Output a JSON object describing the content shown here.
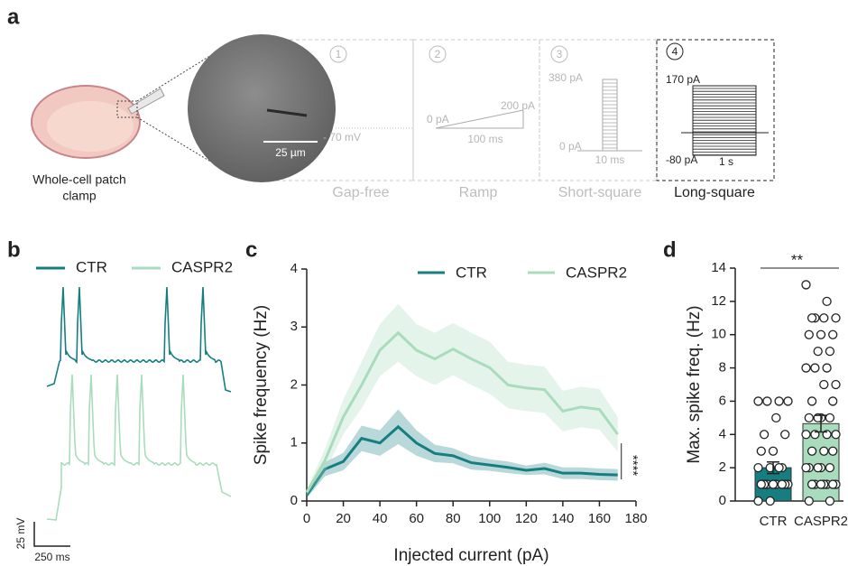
{
  "panel_a": {
    "label": "a",
    "cell_caption": [
      "Whole-cell patch",
      "clamp"
    ],
    "scale_bar": "25 µm",
    "protocols": [
      {
        "number": 1,
        "name": "Gap-free",
        "labels": [
          "- 70 mV"
        ]
      },
      {
        "number": 2,
        "name": "Ramp",
        "labels": [
          "0 pA",
          "200 pA",
          "100 ms"
        ]
      },
      {
        "number": 3,
        "name": "Short-square",
        "labels": [
          "380 pA",
          "0 pA",
          "10 ms"
        ]
      },
      {
        "number": 4,
        "name": "Long-square",
        "labels": [
          "170 pA",
          "-80 pA",
          "1 s"
        ]
      }
    ]
  },
  "panel_b": {
    "label": "b",
    "legend": [
      "CTR",
      "CASPR2"
    ],
    "scale_v": "25 mV",
    "scale_t": "250 ms"
  },
  "chart_data": [
    {
      "panel_label": "c",
      "type": "line",
      "xlabel": "Injected current (pA)",
      "ylabel": "Spike frequency (Hz)",
      "x": [
        0,
        10,
        20,
        30,
        40,
        50,
        60,
        70,
        80,
        90,
        100,
        110,
        120,
        130,
        140,
        150,
        160,
        170
      ],
      "series": [
        {
          "name": "CTR",
          "color": "#167e80",
          "values": [
            0.1,
            0.55,
            0.68,
            1.08,
            1.0,
            1.28,
            1.0,
            0.82,
            0.78,
            0.66,
            0.62,
            0.58,
            0.53,
            0.56,
            0.48,
            0.48,
            0.46,
            0.45
          ],
          "errors": [
            0.05,
            0.12,
            0.15,
            0.22,
            0.22,
            0.3,
            0.22,
            0.15,
            0.13,
            0.12,
            0.1,
            0.1,
            0.08,
            0.1,
            0.1,
            0.1,
            0.1,
            0.1
          ]
        },
        {
          "name": "CASPR2",
          "color": "#a8dcbc",
          "values": [
            0.15,
            0.7,
            1.45,
            2.0,
            2.6,
            2.9,
            2.6,
            2.45,
            2.62,
            2.45,
            2.3,
            2.0,
            1.95,
            1.92,
            1.55,
            1.62,
            1.58,
            1.15
          ],
          "errors": [
            0.05,
            0.2,
            0.3,
            0.4,
            0.45,
            0.5,
            0.45,
            0.45,
            0.45,
            0.45,
            0.45,
            0.4,
            0.4,
            0.4,
            0.35,
            0.35,
            0.35,
            0.3
          ]
        }
      ],
      "xlim": [
        0,
        180
      ],
      "ylim": [
        0,
        4
      ],
      "xticks": [
        0,
        20,
        40,
        60,
        80,
        100,
        120,
        140,
        160,
        180
      ],
      "yticks": [
        0,
        1,
        2,
        3,
        4
      ],
      "legend": "top",
      "annotation": "****"
    },
    {
      "panel_label": "d",
      "type": "bar",
      "ylabel": "Max. spike freq. (Hz)",
      "categories": [
        "CTR",
        "CASPR2"
      ],
      "values": [
        2.0,
        4.65
      ],
      "errors": [
        0.35,
        0.5
      ],
      "colors": [
        "#167e80",
        "#a8dcbc"
      ],
      "points": [
        [
          6,
          6,
          6,
          6,
          5,
          4,
          4,
          3,
          3,
          2,
          2,
          2,
          2,
          1,
          1,
          1,
          1,
          1,
          1,
          1,
          1,
          0,
          0
        ],
        [
          13,
          12,
          11,
          11,
          11,
          11,
          10,
          10,
          10,
          9,
          9,
          8,
          8,
          8,
          7,
          7,
          6,
          6,
          5,
          5,
          5,
          5,
          4,
          4,
          4,
          4,
          3,
          3,
          3,
          2,
          2,
          2,
          2,
          2,
          1,
          1,
          1,
          1,
          1,
          1,
          1,
          0,
          0
        ]
      ],
      "ylim": [
        0,
        14
      ],
      "yticks": [
        0,
        2,
        4,
        6,
        8,
        10,
        12,
        14
      ],
      "annotation": "**"
    }
  ]
}
